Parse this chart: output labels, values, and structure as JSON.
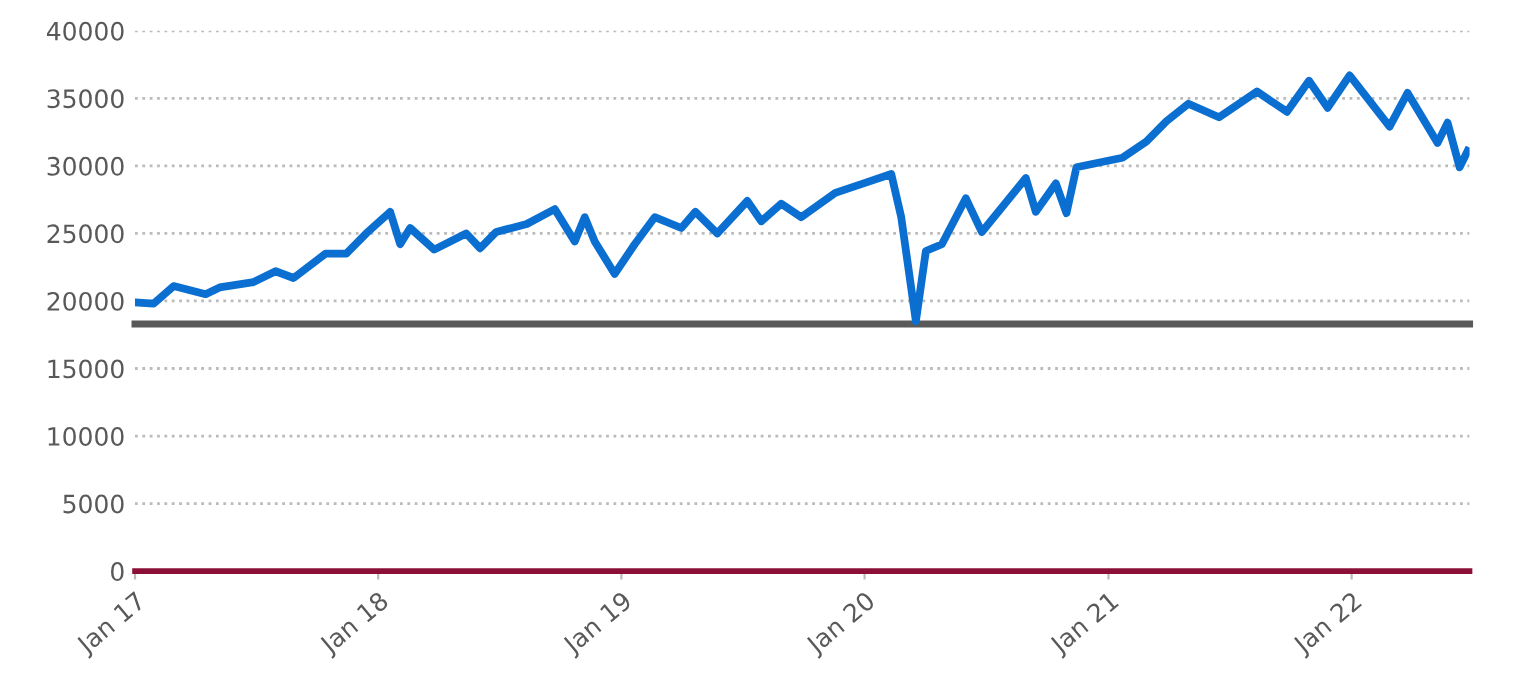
{
  "chart_data": {
    "type": "line",
    "x": [
      "2017-01-01",
      "2017-01-29",
      "2017-02-28",
      "2017-04-17",
      "2017-05-08",
      "2017-06-28",
      "2017-07-31",
      "2017-08-27",
      "2017-10-14",
      "2017-11-14",
      "2017-12-14",
      "2018-01-19",
      "2018-02-03",
      "2018-02-18",
      "2018-03-26",
      "2018-05-13",
      "2018-06-03",
      "2018-06-27",
      "2018-08-12",
      "2018-09-23",
      "2018-10-23",
      "2018-11-07",
      "2018-11-22",
      "2018-12-22",
      "2019-01-21",
      "2019-02-20",
      "2019-04-01",
      "2019-04-22",
      "2019-05-25",
      "2019-07-09",
      "2019-07-30",
      "2019-08-29",
      "2019-09-28",
      "2019-11-18",
      "2020-01-05",
      "2020-02-10",
      "2020-02-25",
      "2020-03-18",
      "2020-04-02",
      "2020-04-26",
      "2020-06-01",
      "2020-06-25",
      "2020-08-30",
      "2020-09-14",
      "2020-10-14",
      "2020-10-30",
      "2020-11-14",
      "2021-01-22",
      "2021-02-27",
      "2021-03-29",
      "2021-05-01",
      "2021-06-16",
      "2021-08-12",
      "2021-09-26",
      "2021-10-29",
      "2021-11-26",
      "2021-12-29",
      "2022-02-27",
      "2022-03-26",
      "2022-05-10",
      "2022-05-25",
      "2022-06-12",
      "2022-06-24"
    ],
    "series": [
      {
        "color": "#0a6fd0",
        "values": [
          19900,
          19800,
          21100,
          20500,
          21000,
          21400,
          22200,
          21700,
          23500,
          23500,
          25000,
          26600,
          24200,
          25400,
          23800,
          25000,
          23900,
          25100,
          25700,
          26800,
          24400,
          26200,
          24400,
          22000,
          24200,
          26200,
          25400,
          26600,
          25000,
          27400,
          25900,
          27200,
          26200,
          28000,
          28800,
          29400,
          26200,
          18500,
          23700,
          24200,
          27600,
          25100,
          29100,
          26600,
          28700,
          26500,
          29900,
          30600,
          31800,
          33300,
          34600,
          33600,
          35500,
          34000,
          36300,
          34300,
          36700,
          32900,
          35400,
          31700,
          33200,
          29900,
          31100
        ]
      }
    ],
    "xlim": [
      "2017-01-01",
      "2022-06-27"
    ],
    "xticks": [
      {
        "value": "2017-01-01",
        "label": "Jan 17"
      },
      {
        "value": "2018-01-01",
        "label": "Jan 18"
      },
      {
        "value": "2019-01-01",
        "label": "Jan 19"
      },
      {
        "value": "2020-01-01",
        "label": "Jan 20"
      },
      {
        "value": "2021-01-01",
        "label": "Jan 21"
      },
      {
        "value": "2022-01-01",
        "label": "Jan 22"
      }
    ],
    "ylim": [
      0,
      40000
    ],
    "yticks": [
      0,
      5000,
      10000,
      15000,
      20000,
      25000,
      30000,
      35000,
      40000
    ],
    "grid": "y",
    "ref_lines": [
      {
        "axis": "y",
        "value": 18300,
        "color": "#595959"
      }
    ],
    "marker": "none",
    "line_style": "solid"
  }
}
